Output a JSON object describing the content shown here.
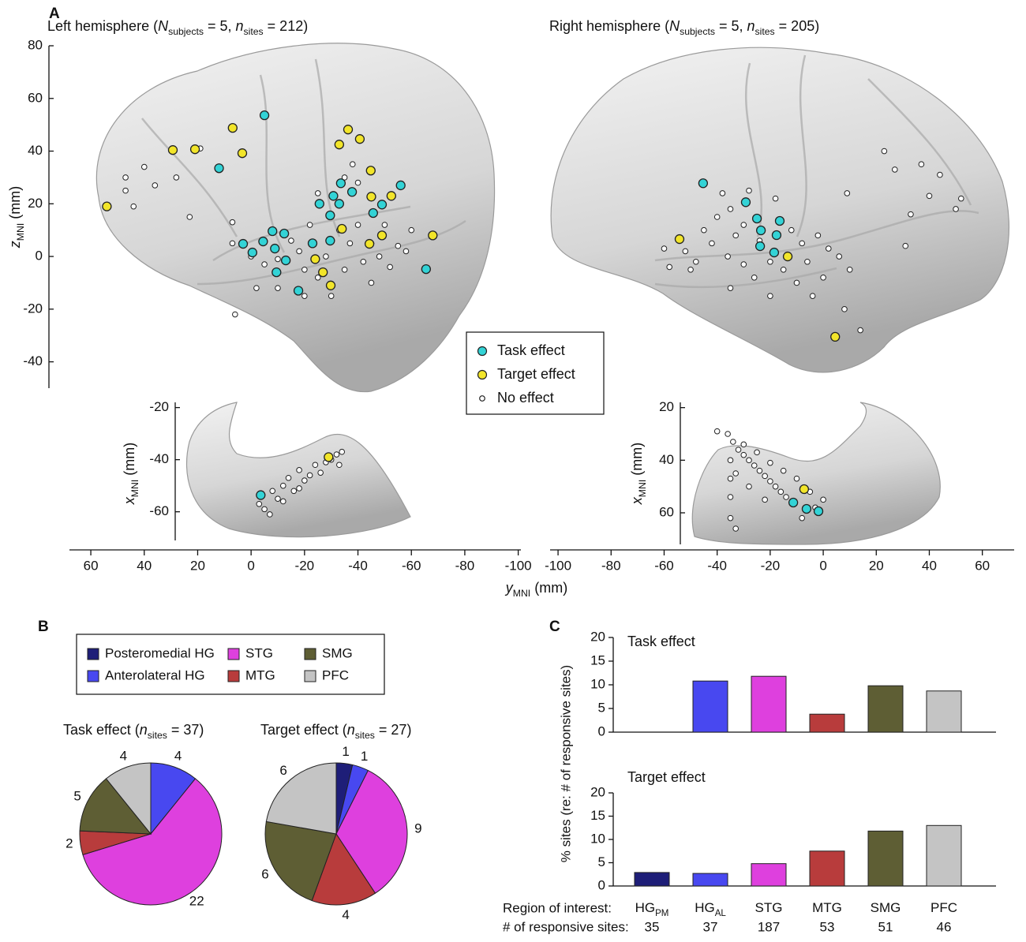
{
  "panels": [
    "A",
    "B",
    "C"
  ],
  "chart_data": [
    {
      "type": "scatter",
      "title": [
        {
          "text": "Left hemisphere ("
        },
        {
          "text": "N",
          "italic": true
        },
        {
          "text": "subjects",
          "sub": true
        },
        {
          "text": " = 5,  "
        },
        {
          "text": "n",
          "italic": true
        },
        {
          "text": "sites",
          "sub": true
        },
        {
          "text": " = 212)"
        }
      ],
      "ylabel": [
        {
          "text": "z",
          "italic": true
        },
        {
          "text": "MNI",
          "sub": true
        },
        {
          "text": " (mm)"
        }
      ],
      "xlabel": [
        {
          "text": "y",
          "italic": true
        },
        {
          "text": "MNI",
          "sub": true
        },
        {
          "text": " (mm)"
        }
      ],
      "xlim": [
        68,
        -101
      ],
      "xticks": [
        60,
        40,
        20,
        0,
        -20,
        -40,
        -60,
        -80,
        -100
      ],
      "ylim": [
        -50,
        80
      ],
      "yticks": [
        -40,
        -20,
        0,
        20,
        40,
        60,
        80
      ],
      "series": [
        {
          "name": "Task effect",
          "color": "#33d3d6",
          "x": [
            -5,
            12,
            -25.6,
            -30.8,
            -37.8,
            -33.6,
            -33,
            -29.6,
            -49,
            -56,
            -45.7,
            -8,
            3,
            -0.5,
            -4.5,
            -8.9,
            -12.4,
            -13,
            -9.5,
            -17.7,
            -23,
            -29.6,
            -65.5
          ],
          "values": [
            53.6,
            33.5,
            20,
            23,
            24.5,
            27.8,
            20,
            15.6,
            19.7,
            27,
            16.5,
            9.6,
            4.8,
            1.5,
            5.7,
            3,
            8.7,
            -1.5,
            -6,
            -13,
            5,
            6,
            -4.8
          ]
        },
        {
          "name": "Target effect",
          "color": "#f2e52a",
          "x": [
            54,
            29.3,
            21,
            6.9,
            3.3,
            -36.3,
            -33,
            -40.7,
            -44.8,
            -45,
            -52.5,
            -49,
            -44.3,
            -34,
            -68,
            -24,
            -26.9,
            -29.8
          ],
          "values": [
            19,
            40.4,
            40.7,
            48.8,
            39.2,
            48.2,
            42.5,
            44.6,
            32.6,
            22.7,
            23,
            8,
            4.8,
            10.5,
            8,
            -1,
            -6,
            -11
          ]
        },
        {
          "name": "No effect",
          "color": "#ffffff",
          "x": [
            47,
            47,
            44,
            40,
            36,
            28,
            23,
            19,
            7,
            7,
            0,
            -5,
            -10,
            -15,
            -18,
            -20,
            -22,
            -25,
            -28,
            -30,
            -33,
            -35,
            -37,
            -38,
            -40,
            -42,
            -45,
            -48,
            -50,
            -52,
            -55,
            -58,
            -60,
            -30,
            -20,
            -10,
            -2,
            6,
            -45,
            -40,
            -25,
            -35
          ],
          "values": [
            30,
            25,
            19,
            34,
            27,
            30,
            15,
            41,
            13,
            5,
            0,
            -3,
            -1,
            6,
            2,
            -5,
            12,
            -8,
            0,
            15,
            10,
            -5,
            5,
            35,
            12,
            -2,
            5,
            0,
            12,
            -4,
            4,
            2,
            10,
            -15,
            -15,
            -12,
            -12,
            -22,
            -10,
            28,
            24,
            30
          ]
        }
      ]
    },
    {
      "type": "scatter",
      "title": [
        {
          "text": "Right hemisphere ("
        },
        {
          "text": "N",
          "italic": true
        },
        {
          "text": "subjects",
          "sub": true
        },
        {
          "text": " = 5, "
        },
        {
          "text": "n",
          "italic": true
        },
        {
          "text": "sites",
          "sub": true
        },
        {
          "text": " = 205)"
        }
      ],
      "xlim": [
        -103,
        72
      ],
      "xticks": [
        -100,
        -80,
        -60,
        -40,
        -20,
        0,
        20,
        40,
        60
      ],
      "ylim": [
        -50,
        80
      ],
      "series": [
        {
          "color": "#33d3d6",
          "x": [
            -45.3,
            -29.2,
            -25,
            -23.5,
            -16.4,
            -17.6,
            -23.8,
            -18.5
          ],
          "values": [
            27.8,
            20.6,
            14.4,
            9.9,
            13.5,
            8.1,
            3.9,
            1.5
          ]
        },
        {
          "color": "#f2e52a",
          "x": [
            -54.2,
            -13.4,
            4.5
          ],
          "values": [
            6.6,
            0,
            -30.5
          ]
        },
        {
          "color": "#ffffff",
          "x": [
            -60,
            -58,
            -52,
            -48,
            -45,
            -42,
            -40,
            -38,
            -36,
            -35,
            -33,
            -30,
            -30,
            -28,
            -26,
            -24,
            -20,
            -18,
            -15,
            -12,
            -10,
            -8,
            -6,
            -4,
            -2,
            0,
            2,
            6,
            8,
            10,
            14,
            23,
            27,
            33,
            37,
            40,
            44,
            50,
            52,
            31,
            -20,
            -35,
            -50,
            9
          ],
          "values": [
            3,
            -4,
            2,
            -2,
            10,
            5,
            15,
            24,
            0,
            18,
            8,
            -3,
            12,
            25,
            -8,
            6,
            -2,
            22,
            -5,
            10,
            -10,
            5,
            -2,
            -15,
            8,
            -8,
            3,
            0,
            -20,
            -5,
            -28,
            40,
            33,
            16,
            35,
            23,
            31,
            18,
            22,
            4,
            -15,
            -12,
            -5,
            24
          ]
        }
      ]
    },
    {
      "type": "scatter",
      "ylabel": [
        {
          "text": "x",
          "italic": true
        },
        {
          "text": "MNI",
          "sub": true
        },
        {
          "text": " (mm)"
        }
      ],
      "xlim": [
        68,
        -101
      ],
      "ylim": [
        -71,
        -18
      ],
      "yticks": [
        -20,
        -40,
        -60
      ],
      "series": [
        {
          "color": "#33d3d6",
          "x": [
            -3.6
          ],
          "values": [
            -53.6
          ]
        },
        {
          "color": "#f2e52a",
          "x": [
            -29
          ],
          "values": [
            -39
          ]
        },
        {
          "color": "#ffffff",
          "x": [
            -3,
            -5,
            -7,
            -8,
            -10,
            -12,
            -14,
            -16,
            -18,
            -20,
            -22,
            -24,
            -26,
            -28,
            -30,
            -32,
            -34,
            -33,
            -12,
            -18
          ],
          "values": [
            -57,
            -59,
            -61,
            -52,
            -55,
            -50,
            -47,
            -52,
            -44,
            -48,
            -46,
            -42,
            -45,
            -41,
            -40,
            -38,
            -37,
            -42,
            -56,
            -51
          ]
        }
      ]
    },
    {
      "type": "scatter",
      "ylabel": [
        {
          "text": "x",
          "italic": true
        },
        {
          "text": "MNI",
          "sub": true
        },
        {
          "text": " (mm)"
        }
      ],
      "xlim": [
        -103,
        72
      ],
      "ylim": [
        72,
        18
      ],
      "yticks": [
        20,
        40,
        60
      ],
      "series": [
        {
          "color": "#33d3d6",
          "x": [
            -11.3,
            -6.3,
            -1.8
          ],
          "values": [
            56.1,
            58.5,
            59.4
          ]
        },
        {
          "color": "#f2e52a",
          "x": [
            -7.2
          ],
          "values": [
            51
          ]
        },
        {
          "color": "#ffffff",
          "x": [
            -40,
            -36,
            -34,
            -32,
            -30,
            -28,
            -26,
            -24,
            -22,
            -20,
            -18,
            -16,
            -14,
            -35,
            -35,
            -35,
            -35,
            -33,
            -30,
            -25,
            -20,
            -15,
            -10,
            -5,
            0,
            -8,
            -3,
            -22,
            -28,
            -33
          ],
          "values": [
            29,
            30,
            33,
            36,
            38,
            40,
            42,
            44,
            46,
            48,
            50,
            52,
            54,
            40,
            47,
            54,
            62,
            66,
            34,
            37,
            41,
            44,
            47,
            52,
            55,
            62,
            58,
            55,
            50,
            45
          ]
        }
      ]
    },
    {
      "type": "pie",
      "title": [
        {
          "text": "Task effect ("
        },
        {
          "text": "n",
          "italic": true
        },
        {
          "text": "sites",
          "sub": true
        },
        {
          "text": " = 37)"
        }
      ],
      "categories": [
        "Posteromedial HG",
        "Anterolateral HG",
        "STG",
        "MTG",
        "SMG",
        "PFC"
      ],
      "colors": [
        "#1e1e78",
        "#4848f0",
        "#de40de",
        "#b83c3c",
        "#5e5e34",
        "#c4c4c4"
      ],
      "values": [
        0,
        4,
        22,
        2,
        5,
        4
      ]
    },
    {
      "type": "pie",
      "title": [
        {
          "text": "Target effect ("
        },
        {
          "text": "n",
          "italic": true
        },
        {
          "text": "sites",
          "sub": true
        },
        {
          "text": " = 27)"
        }
      ],
      "values": [
        1,
        1,
        9,
        4,
        6,
        6
      ]
    },
    {
      "type": "bar",
      "title": "Task effect",
      "ylabel": "% sites (re: # of responsive sites)",
      "ylim": [
        0,
        20
      ],
      "yticks": [
        0,
        5,
        10,
        15,
        20
      ],
      "values": [
        0,
        10.8,
        11.8,
        3.8,
        9.8,
        8.7
      ]
    },
    {
      "type": "bar",
      "title": "Target effect",
      "ylim": [
        0,
        20
      ],
      "yticks": [
        0,
        5,
        10,
        15,
        20
      ],
      "values": [
        2.9,
        2.7,
        4.8,
        7.5,
        11.8,
        13.0
      ],
      "categories": [
        {
          "text": "HG",
          "sub": "PM"
        },
        {
          "text": "HG",
          "sub": "AL"
        },
        {
          "text": "STG"
        },
        {
          "text": "MTG"
        },
        {
          "text": "SMG"
        },
        {
          "text": "PFC"
        }
      ],
      "row_labels": [
        "Region of interest:",
        "# of responsive sites:"
      ],
      "responsive_sites": [
        35,
        37,
        187,
        53,
        51,
        46
      ]
    }
  ]
}
